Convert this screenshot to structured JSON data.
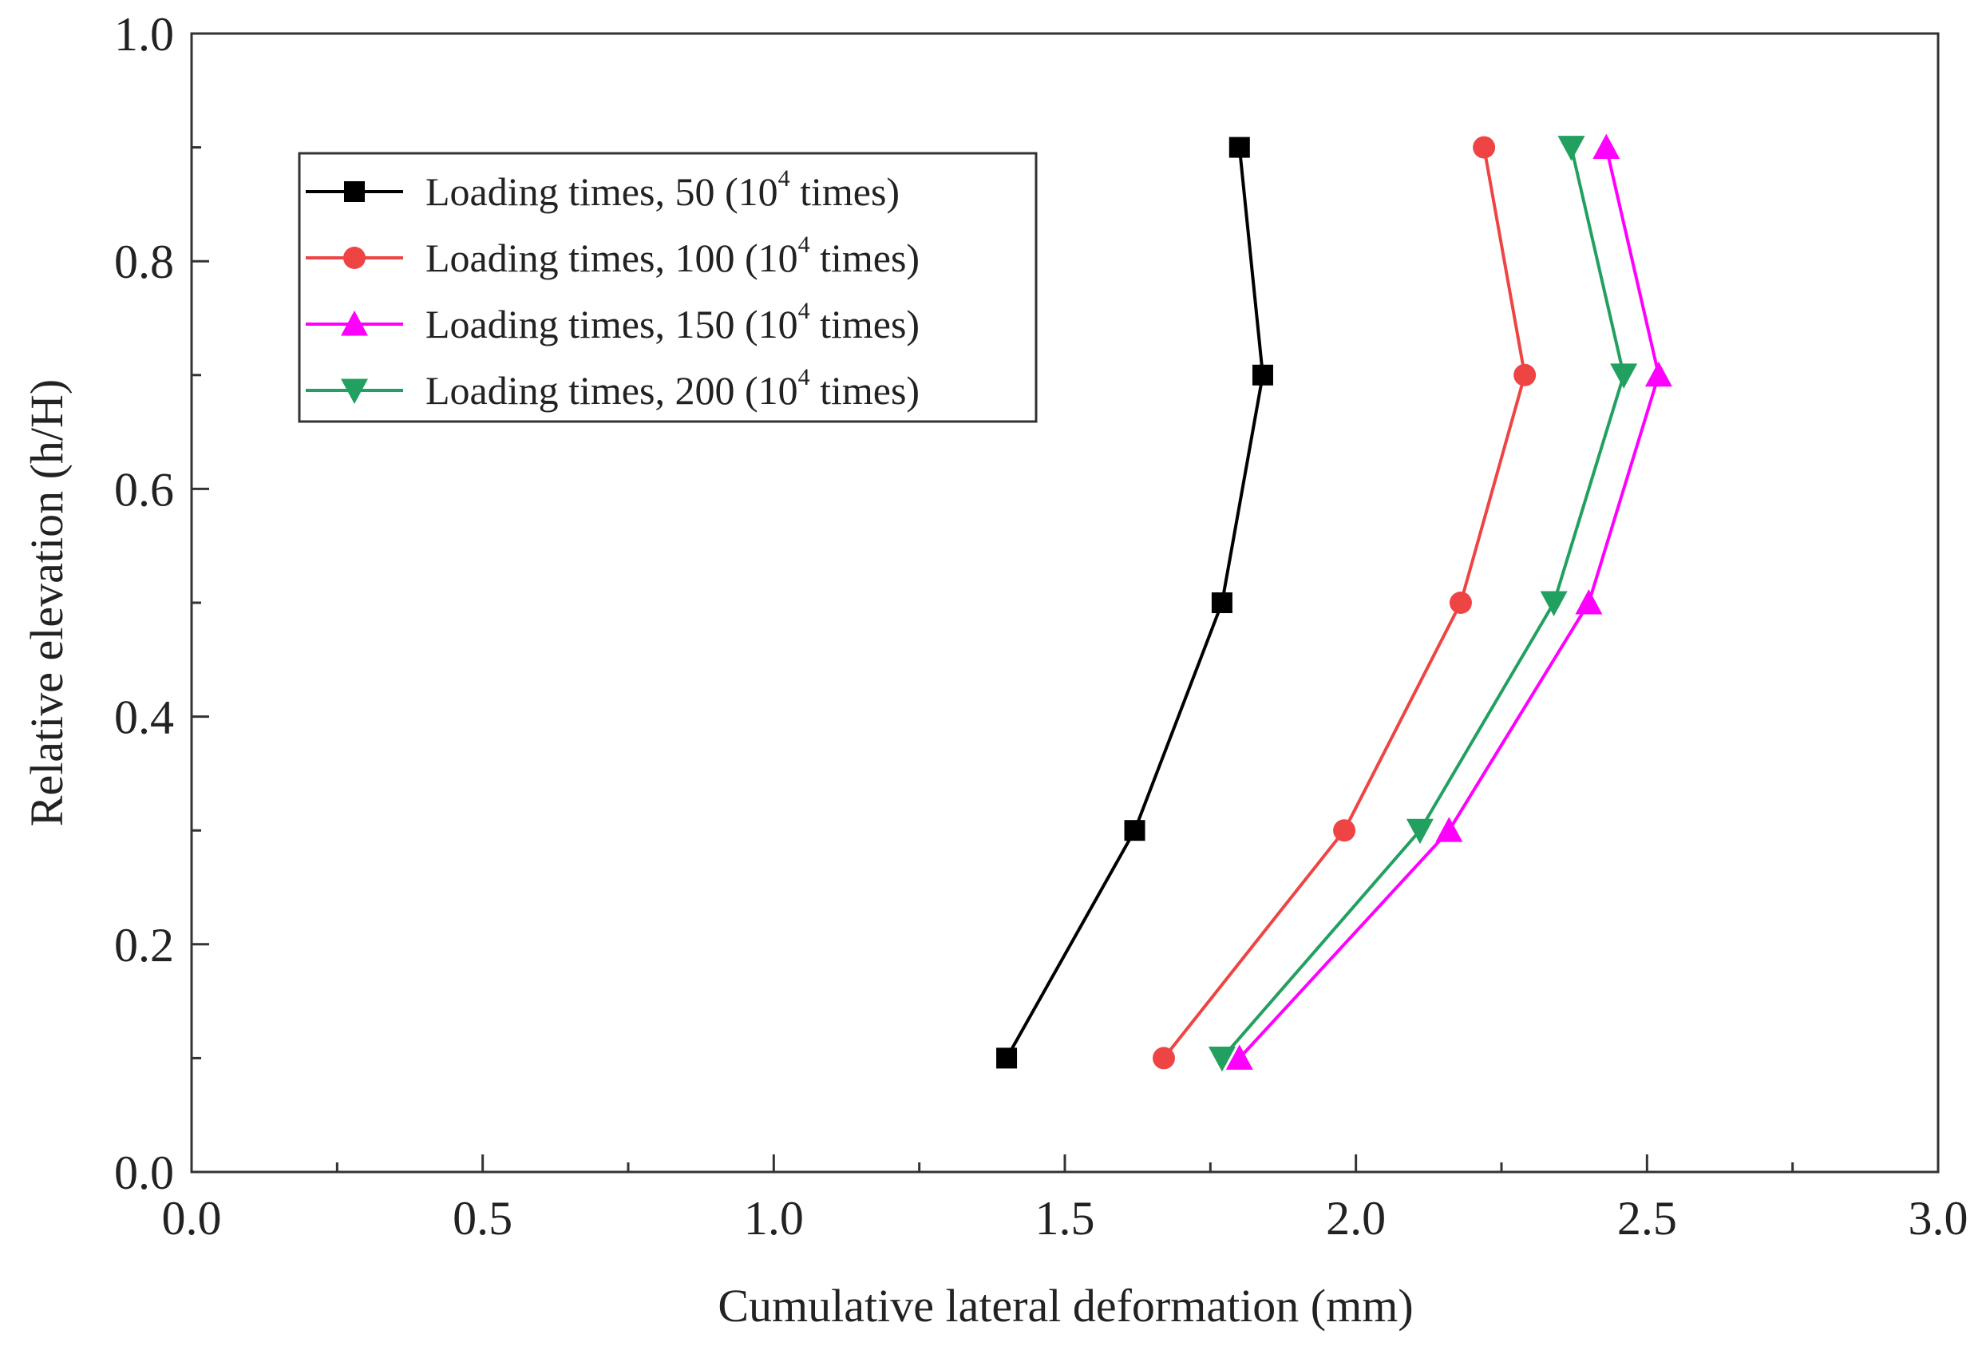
{
  "chart_data": {
    "type": "line",
    "title": "",
    "xlabel": "Cumulative lateral deformation (mm)",
    "ylabel": "Relative elevation (h/H)",
    "xlim": [
      0.0,
      3.0
    ],
    "ylim": [
      0.0,
      1.0
    ],
    "x_major_ticks": [
      0.0,
      0.5,
      1.0,
      1.5,
      2.0,
      2.5,
      3.0
    ],
    "x_tick_labels": [
      "0.0",
      "0.5",
      "1.0",
      "1.5",
      "2.0",
      "2.5",
      "3.0"
    ],
    "y_major_ticks": [
      0.0,
      0.2,
      0.4,
      0.6,
      0.8,
      1.0
    ],
    "y_tick_labels": [
      "0.0",
      "0.2",
      "0.4",
      "0.6",
      "0.8",
      "1.0"
    ],
    "grid": false,
    "legend_position": "top-left",
    "series": [
      {
        "name": "Loading times, 50 (10⁴ times)",
        "label_prefix": "Loading times, 50 (10",
        "label_sup": "4",
        "label_suffix": " times)",
        "marker": "square",
        "color": "#000000",
        "x": [
          1.4,
          1.62,
          1.77,
          1.84,
          1.8
        ],
        "y": [
          0.1,
          0.3,
          0.5,
          0.7,
          0.9
        ]
      },
      {
        "name": "Loading times, 100 (10⁴ times)",
        "label_prefix": "Loading times, 100 (10",
        "label_sup": "4",
        "label_suffix": " times)",
        "marker": "circle",
        "color": "#ef4444",
        "x": [
          1.67,
          1.98,
          2.18,
          2.29,
          2.22
        ],
        "y": [
          0.1,
          0.3,
          0.5,
          0.7,
          0.9
        ]
      },
      {
        "name": "Loading times, 150 (10⁴  times)",
        "label_prefix": "Loading times, 150 (10",
        "label_sup": "4",
        "label_suffix": "  times)",
        "marker": "triangle-up",
        "color": "#ff00ff",
        "x": [
          1.8,
          2.16,
          2.4,
          2.52,
          2.43
        ],
        "y": [
          0.1,
          0.3,
          0.5,
          0.7,
          0.9
        ]
      },
      {
        "name": "Loading times, 200 (10⁴  times)",
        "label_prefix": "Loading times, 200 (10",
        "label_sup": "4",
        "label_suffix": "  times)",
        "marker": "triangle-down",
        "color": "#22a060",
        "x": [
          1.77,
          2.11,
          2.34,
          2.46,
          2.37
        ],
        "y": [
          0.1,
          0.3,
          0.5,
          0.7,
          0.9
        ]
      }
    ]
  }
}
